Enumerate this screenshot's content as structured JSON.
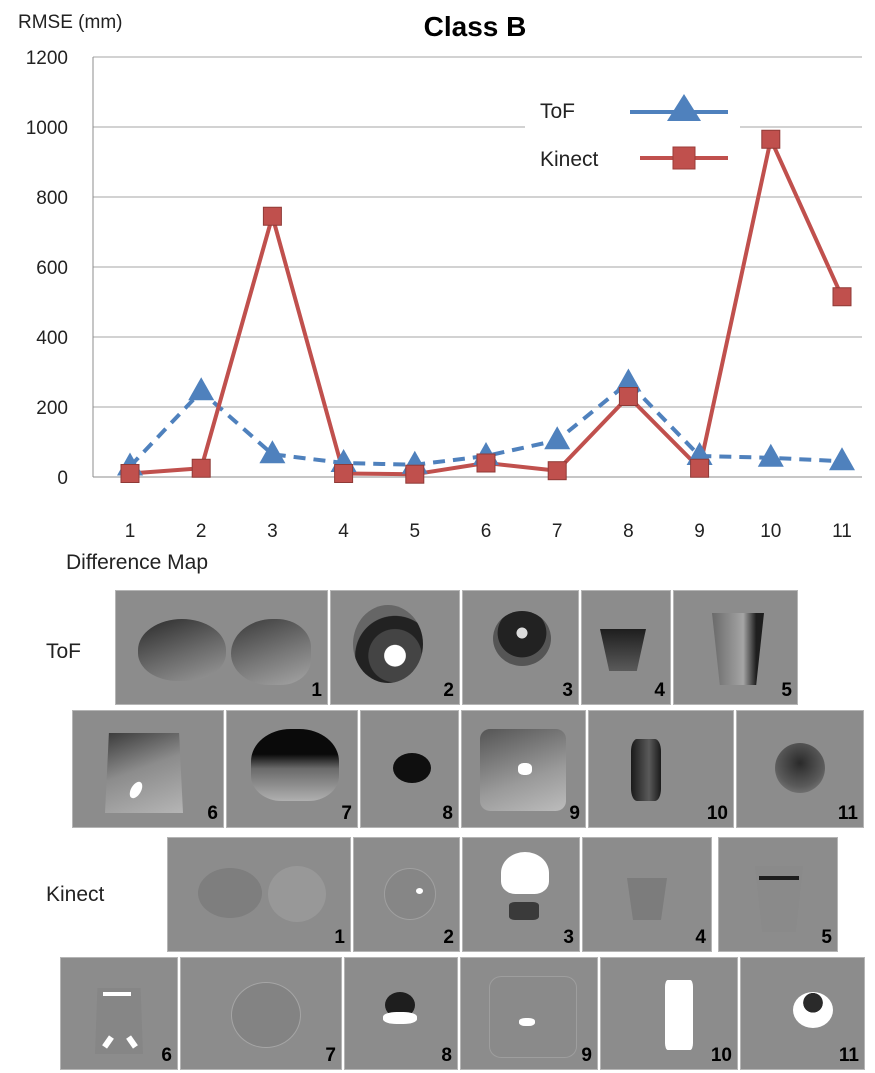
{
  "chart_data": {
    "type": "line",
    "title": "Class B",
    "ylabel": "RMSE (mm)",
    "xlabel": "",
    "x": [
      1,
      2,
      3,
      4,
      5,
      6,
      7,
      8,
      9,
      10,
      11
    ],
    "x_tick_labels": [
      "1",
      "2",
      "3",
      "4",
      "5",
      "6",
      "7",
      "8",
      "9",
      "10",
      "11"
    ],
    "ylim": [
      0,
      1200
    ],
    "yticks": [
      0,
      200,
      400,
      600,
      800,
      1000,
      1200
    ],
    "y_tick_labels": [
      "0",
      "200",
      "400",
      "600",
      "800",
      "1000",
      "1200"
    ],
    "grid": "horizontal",
    "legend_position": "top-right",
    "series": [
      {
        "name": "ToF",
        "color": "#4f81bd",
        "marker": "triangle",
        "line_style": "dashed",
        "values": [
          30,
          245,
          65,
          40,
          35,
          60,
          105,
          270,
          60,
          55,
          45
        ]
      },
      {
        "name": "Kinect",
        "color": "#c0504d",
        "marker": "square",
        "line_style": "solid",
        "values": [
          10,
          25,
          745,
          10,
          8,
          40,
          18,
          230,
          25,
          965,
          515
        ]
      }
    ]
  },
  "difference_map": {
    "heading": "Difference Map",
    "tof_label": "ToF",
    "kinect_label": "Kinect",
    "tof_numbers": [
      "1",
      "2",
      "3",
      "4",
      "5",
      "6",
      "7",
      "8",
      "9",
      "10",
      "11"
    ],
    "kinect_numbers": [
      "1",
      "2",
      "3",
      "4",
      "5",
      "6",
      "7",
      "8",
      "9",
      "10",
      "11"
    ]
  }
}
